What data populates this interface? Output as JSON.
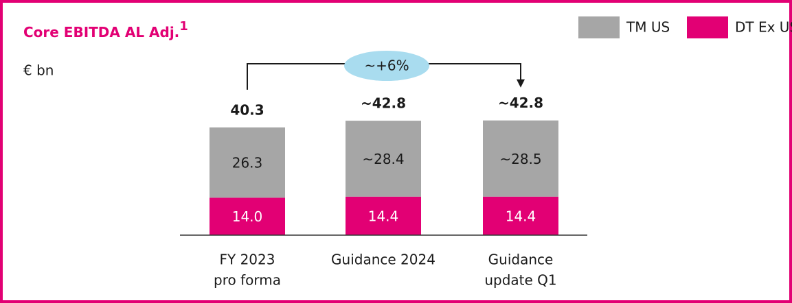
{
  "chart_data": {
    "type": "stacked_bar",
    "title": "Core EBITDA AL Adj.",
    "title_footnote": "1",
    "subtitle": "€ bn",
    "categories": [
      [
        "FY 2023",
        "pro forma"
      ],
      [
        "Guidance 2024"
      ],
      [
        "Guidance",
        "update Q1"
      ]
    ],
    "series": [
      {
        "name": "DT Ex US",
        "color": "#e20074",
        "values": [
          14.0,
          14.4,
          14.4
        ],
        "value_labels": [
          "14.0",
          "14.4",
          "14.4"
        ]
      },
      {
        "name": "TM US",
        "color": "#a6a6a6",
        "values": [
          26.3,
          28.4,
          28.5
        ],
        "value_labels": [
          "26.3",
          "~28.4",
          "~28.5"
        ]
      }
    ],
    "totals": [
      40.3,
      42.8,
      42.8
    ],
    "total_labels": [
      "40.3",
      "~42.8",
      "~42.8"
    ],
    "annotation": "~+6%",
    "legend": "top-right"
  }
}
